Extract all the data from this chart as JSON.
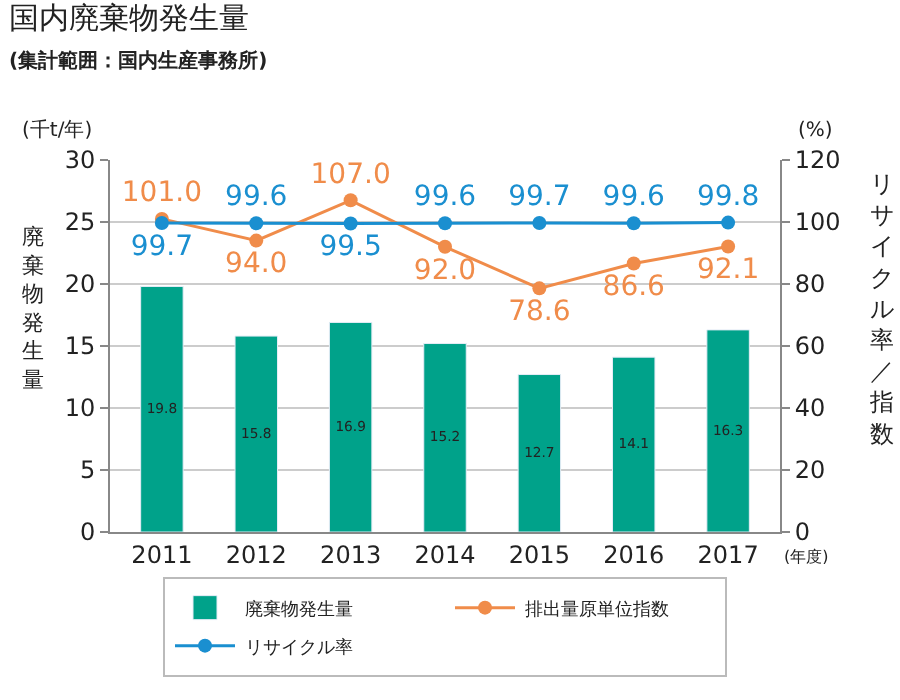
{
  "chart_data": {
    "type": "bar",
    "title": "国内廃棄物発生量",
    "subtitle": "(集計範囲：国内生産事務所)",
    "ylabel": "廃棄物発生量",
    "y2label": "リサイクル率／指数",
    "xlabel": "(年度)",
    "annotations": [
      "(千t/年)",
      "(%)"
    ],
    "categories": [
      "2011",
      "2012",
      "2013",
      "2014",
      "2015",
      "2016",
      "2017"
    ],
    "series": [
      {
        "name": "廃棄物発生量",
        "color": "#00a28a",
        "values": [
          19.8,
          15.8,
          16.9,
          15.2,
          12.7,
          14.1,
          16.3
        ],
        "value_labels": [
          "19.8",
          "15.8",
          "16.9",
          "15.2",
          "12.7",
          "14.1",
          "16.3"
        ]
      },
      {
        "name": "排出量原単位指数",
        "type": "line",
        "axis": "y2",
        "color": "#f08c4a",
        "values": [
          101.0,
          94.0,
          107.0,
          92.0,
          78.6,
          86.6,
          92.1
        ],
        "value_labels": [
          "101.0",
          "94.0",
          "107.0",
          "92.0",
          "78.6",
          "86.6",
          "92.1"
        ]
      },
      {
        "name": "リサイクル率",
        "type": "line",
        "axis": "y2",
        "color": "#1a8fd0",
        "values": [
          99.7,
          99.6,
          99.5,
          99.6,
          99.7,
          99.6,
          99.8
        ],
        "value_labels": [
          "99.7",
          "99.6",
          "99.5",
          "99.6",
          "99.7",
          "99.6",
          "99.8"
        ]
      }
    ],
    "ylim": [
      0,
      30
    ],
    "yticks": [
      0,
      5,
      10,
      15,
      20,
      25,
      30
    ],
    "y2lim": [
      0,
      120
    ],
    "y2ticks": [
      0,
      20,
      40,
      60,
      80,
      100,
      120
    ],
    "grid": "y",
    "legend": "bottom",
    "marker": "circle"
  }
}
